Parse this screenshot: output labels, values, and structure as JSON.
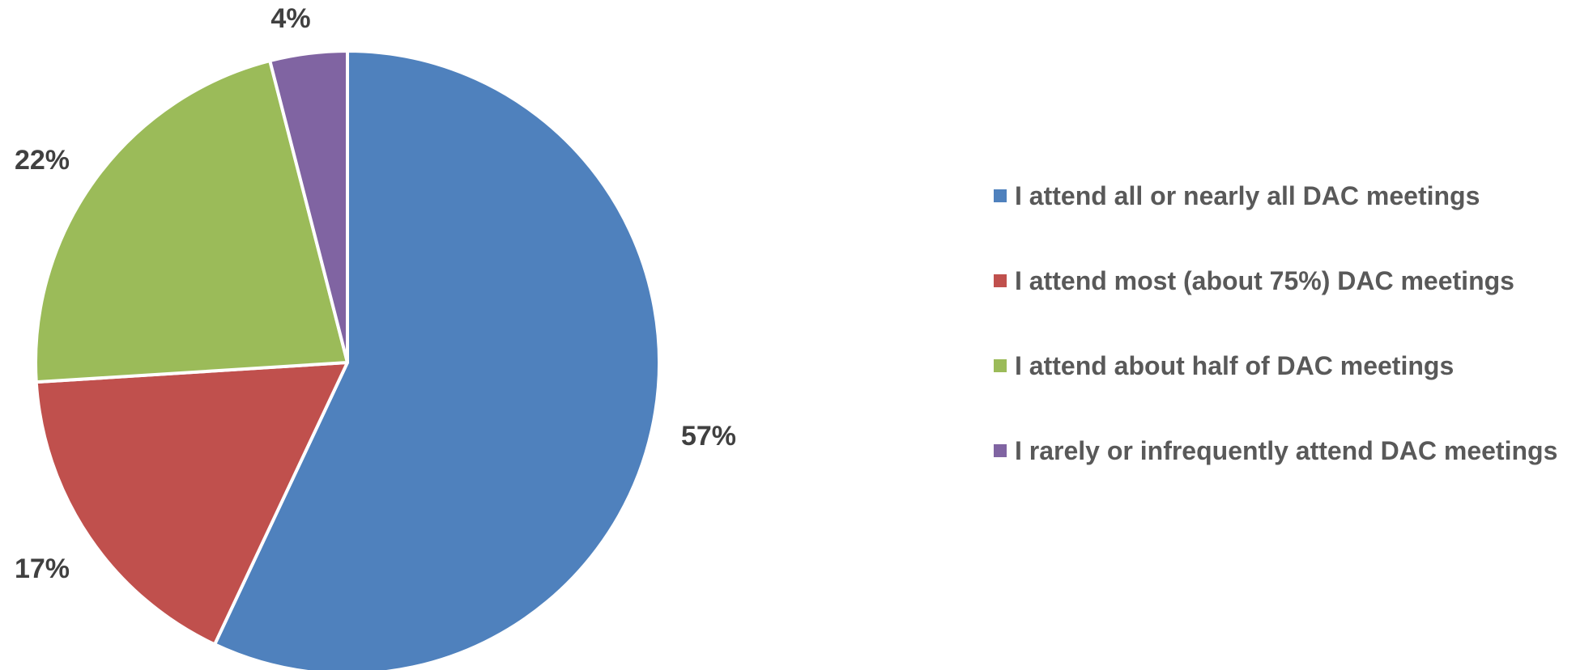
{
  "chart_data": {
    "type": "pie",
    "title": "",
    "start_angle": "12 o'clock",
    "direction": "clockwise",
    "legend_position": "right",
    "slices": [
      {
        "label": "I attend all or nearly all DAC meetings",
        "value": 57,
        "display": "57%",
        "color": "#4F81BD"
      },
      {
        "label": "I attend most (about 75%) DAC meetings",
        "value": 17,
        "display": "17%",
        "color": "#C0504D"
      },
      {
        "label": "I attend about half of DAC meetings",
        "value": 22,
        "display": "22%",
        "color": "#9BBB59"
      },
      {
        "label": "I rarely or infrequently attend DAC meetings",
        "value": 4,
        "display": "4%",
        "color": "#8064A2"
      }
    ]
  }
}
